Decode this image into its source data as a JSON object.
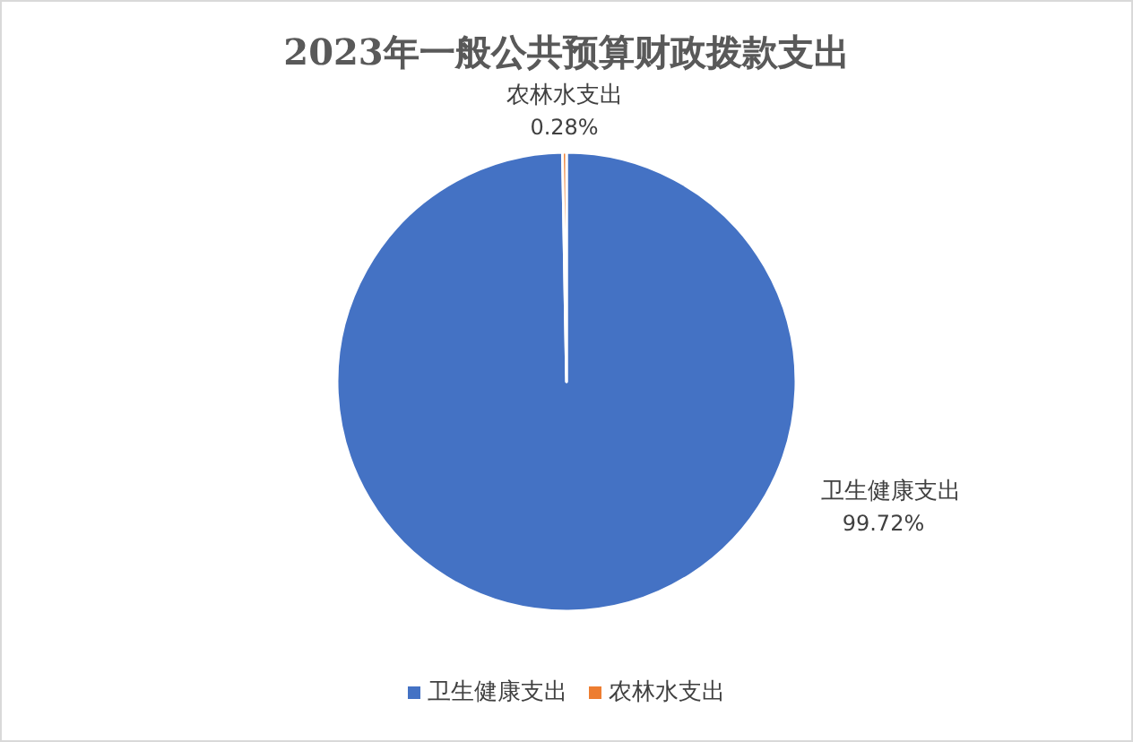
{
  "chart_data": {
    "type": "pie",
    "title": "2023年一般公共预算财政拨款支出",
    "categories": [
      "卫生健康支出",
      "农林水支出"
    ],
    "values": [
      99.72,
      0.28
    ],
    "value_labels": [
      "99.72%",
      "0.28%"
    ],
    "colors": [
      "#4472c4",
      "#ed7d31"
    ],
    "legend": "bottom"
  }
}
